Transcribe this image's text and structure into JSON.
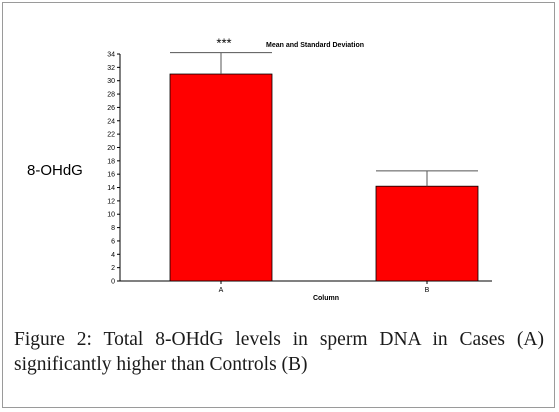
{
  "chart_data": {
    "type": "bar",
    "title": "Mean and Standard Deviation",
    "xlabel": "Column",
    "ylabel": "8-OHdG",
    "categories": [
      "A",
      "B"
    ],
    "values": [
      31,
      14.2
    ],
    "error_upper": [
      34.2,
      16.5
    ],
    "significance": [
      "***",
      ""
    ],
    "ylim": [
      0,
      34
    ],
    "yticks": [
      0,
      2,
      4,
      6,
      8,
      10,
      12,
      14,
      16,
      18,
      20,
      22,
      24,
      26,
      28,
      30,
      32,
      34
    ],
    "bar_color": "#ff0000",
    "grid": false,
    "legend": "none"
  },
  "caption": {
    "label": "Figure 2:",
    "text": "Total 8-OHdG levels in sperm DNA in Cases (A) significantly higher than Controls (B)"
  }
}
